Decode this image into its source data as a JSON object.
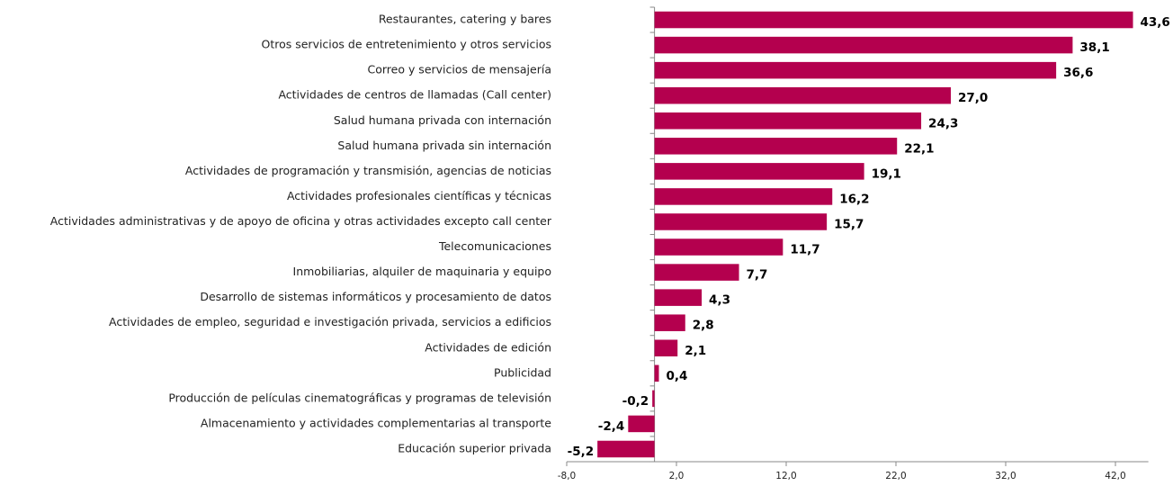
{
  "chart_data": {
    "type": "hbar",
    "categories": [
      "Restaurantes, catering y bares",
      "Otros servicios de entretenimiento y otros servicios",
      "Correo y servicios de mensajería",
      "Actividades de centros de llamadas (Call center)",
      "Salud humana privada con internación",
      "Salud humana privada sin internación",
      "Actividades de programación y transmisión, agencias de noticias",
      "Actividades profesionales científicas y técnicas",
      "Actividades administrativas y de apoyo de oficina y otras actividades excepto call center",
      "Telecomunicaciones",
      "Inmobiliarias, alquiler de maquinaria y equipo",
      "Desarrollo de sistemas informáticos y procesamiento de datos",
      "Actividades de empleo, seguridad e investigación privada, servicios a edificios",
      "Actividades de edición",
      "Publicidad",
      "Producción de películas cinematográficas y programas de televisión",
      "Almacenamiento y actividades complementarias al transporte",
      "Educación superior privada"
    ],
    "values": [
      43.6,
      38.1,
      36.6,
      27.0,
      24.3,
      22.1,
      19.1,
      16.2,
      15.7,
      11.7,
      7.7,
      4.3,
      2.8,
      2.1,
      0.4,
      -0.2,
      -2.4,
      -5.2
    ],
    "value_labels": [
      "43,6",
      "38,1",
      "36,6",
      "27,0",
      "24,3",
      "22,1",
      "19,1",
      "16,2",
      "15,7",
      "11,7",
      "7,7",
      "4,3",
      "2,8",
      "2,1",
      "0,4",
      "-0,2",
      "-2,4",
      "-5,2"
    ],
    "color": "#b4004e",
    "xlim": [
      -8,
      45
    ],
    "xticks": [
      {
        "value": -8,
        "label": "-8,0"
      },
      {
        "value": 2,
        "label": "2,0"
      },
      {
        "value": 12,
        "label": "12,0"
      },
      {
        "value": 22,
        "label": "22,0"
      },
      {
        "value": 32,
        "label": "32,0"
      },
      {
        "value": 42,
        "label": "42,0"
      }
    ],
    "grid": false
  }
}
